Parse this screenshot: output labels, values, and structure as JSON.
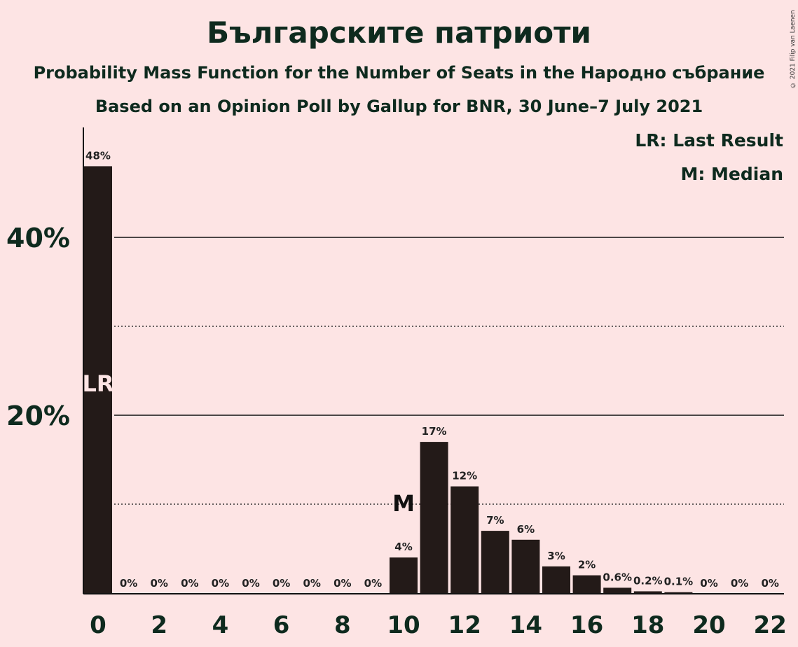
{
  "header": {
    "title": "Българските патриоти",
    "subtitle": "Probability Mass Function for the Number of Seats in the Народно събрание",
    "source": "Based on an Opinion Poll by Gallup for BNR, 30 June–7 July 2021",
    "copyright": "© 2021 Filip van Laenen"
  },
  "legend": {
    "last_result": "LR: Last Result",
    "median": "M: Median"
  },
  "colors": {
    "background": "#fde4e4",
    "bar": "#231a18",
    "text": "#0e2a1e"
  },
  "chart_data": {
    "type": "bar",
    "title": "Българските патриоти",
    "xlabel": "",
    "ylabel": "",
    "categories": [
      0,
      1,
      2,
      3,
      4,
      5,
      6,
      7,
      8,
      9,
      10,
      11,
      12,
      13,
      14,
      15,
      16,
      17,
      18,
      19,
      20,
      21,
      22
    ],
    "values": [
      48,
      0,
      0,
      0,
      0,
      0,
      0,
      0,
      0,
      0,
      4,
      17,
      12,
      7,
      6,
      3,
      2,
      0.6,
      0.2,
      0.1,
      0,
      0,
      0
    ],
    "value_labels": [
      "48%",
      "0%",
      "0%",
      "0%",
      "0%",
      "0%",
      "0%",
      "0%",
      "0%",
      "0%",
      "4%",
      "17%",
      "12%",
      "7%",
      "6%",
      "3%",
      "2%",
      "0.6%",
      "0.2%",
      "0.1%",
      "0%",
      "0%",
      "0%"
    ],
    "x_ticks": [
      "0",
      "2",
      "4",
      "6",
      "8",
      "10",
      "12",
      "14",
      "16",
      "18",
      "20",
      "22"
    ],
    "y_ticks": [
      "20%",
      "40%"
    ],
    "ylim": [
      0,
      52
    ],
    "last_result": {
      "seat": 0,
      "label": "LR"
    },
    "median": {
      "seat": 10,
      "label": "M"
    }
  }
}
